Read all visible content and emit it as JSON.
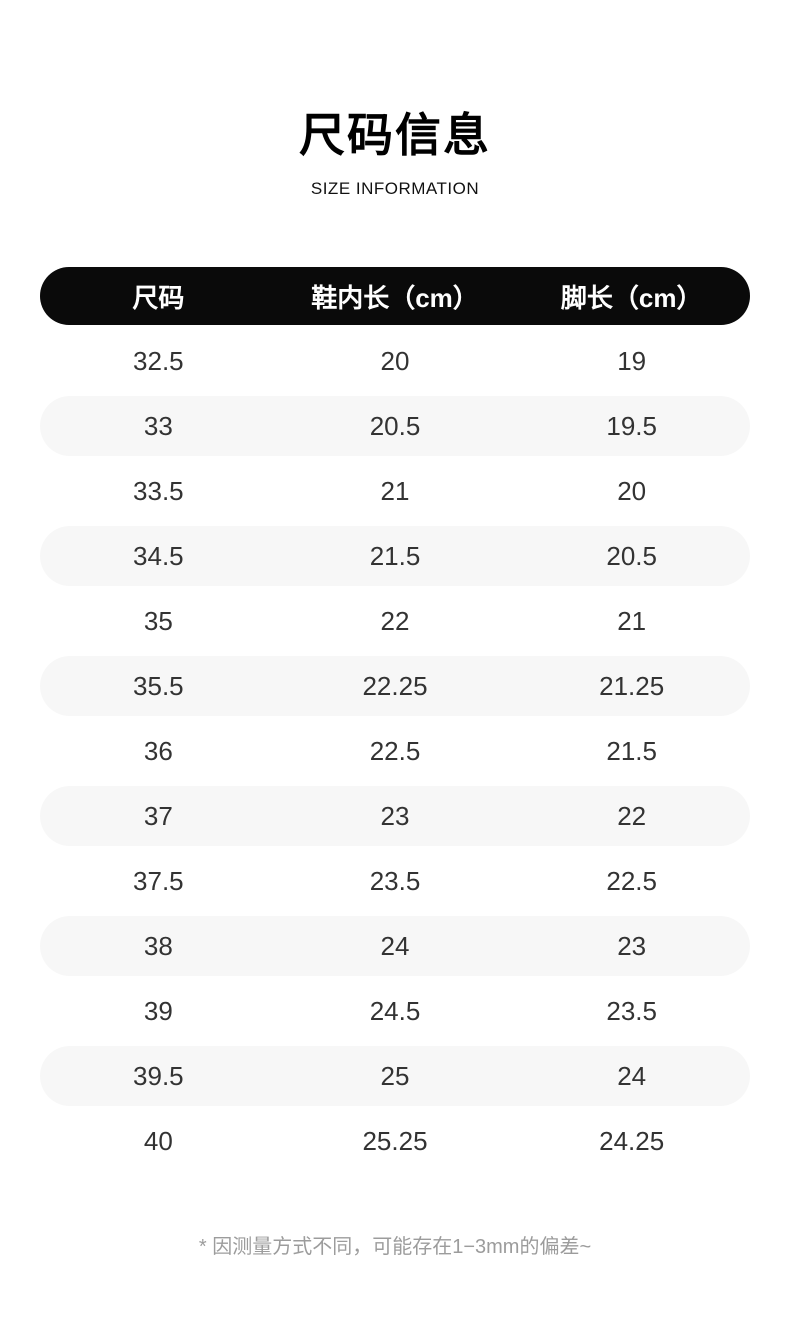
{
  "page": {
    "title": "尺码信息",
    "subtitle": "SIZE INFORMATION",
    "footnote": "* 因测量方式不同，可能存在1−3mm的偏差~"
  },
  "table": {
    "columns": [
      "尺码",
      "鞋内长（cm）",
      "脚长（cm）"
    ],
    "rows": [
      [
        "32.5",
        "20",
        "19"
      ],
      [
        "33",
        "20.5",
        "19.5"
      ],
      [
        "33.5",
        "21",
        "20"
      ],
      [
        "34.5",
        "21.5",
        "20.5"
      ],
      [
        "35",
        "22",
        "21"
      ],
      [
        "35.5",
        "22.25",
        "21.25"
      ],
      [
        "36",
        "22.5",
        "21.5"
      ],
      [
        "37",
        "23",
        "22"
      ],
      [
        "37.5",
        "23.5",
        "22.5"
      ],
      [
        "38",
        "24",
        "23"
      ],
      [
        "39",
        "24.5",
        "23.5"
      ],
      [
        "39.5",
        "25",
        "24"
      ],
      [
        "40",
        "25.25",
        "24.25"
      ]
    ]
  },
  "colors": {
    "header_bg": "#0a0a0a",
    "header_text": "#ffffff",
    "row_stripe": "#f7f7f7",
    "cell_text": "#333333",
    "footnote_text": "#9c9c9c"
  },
  "chart_data": {
    "type": "table",
    "title": "尺码信息",
    "subtitle": "SIZE INFORMATION",
    "columns": [
      "尺码",
      "鞋内长（cm）",
      "脚长（cm）"
    ],
    "rows": [
      [
        "32.5",
        "20",
        "19"
      ],
      [
        "33",
        "20.5",
        "19.5"
      ],
      [
        "33.5",
        "21",
        "20"
      ],
      [
        "34.5",
        "21.5",
        "20.5"
      ],
      [
        "35",
        "22",
        "21"
      ],
      [
        "35.5",
        "22.25",
        "21.25"
      ],
      [
        "36",
        "22.5",
        "21.5"
      ],
      [
        "37",
        "23",
        "22"
      ],
      [
        "37.5",
        "23.5",
        "22.5"
      ],
      [
        "38",
        "24",
        "23"
      ],
      [
        "39",
        "24.5",
        "23.5"
      ],
      [
        "39.5",
        "25",
        "24"
      ],
      [
        "40",
        "25.25",
        "24.25"
      ]
    ],
    "footnote": "* 因测量方式不同，可能存在1−3mm的偏差~",
    "layout": {
      "striped_rows": "even rows (2nd, 4th, ...) light gray pills",
      "header_style": "black rounded pill, white bold text",
      "columns_align": "center"
    }
  }
}
